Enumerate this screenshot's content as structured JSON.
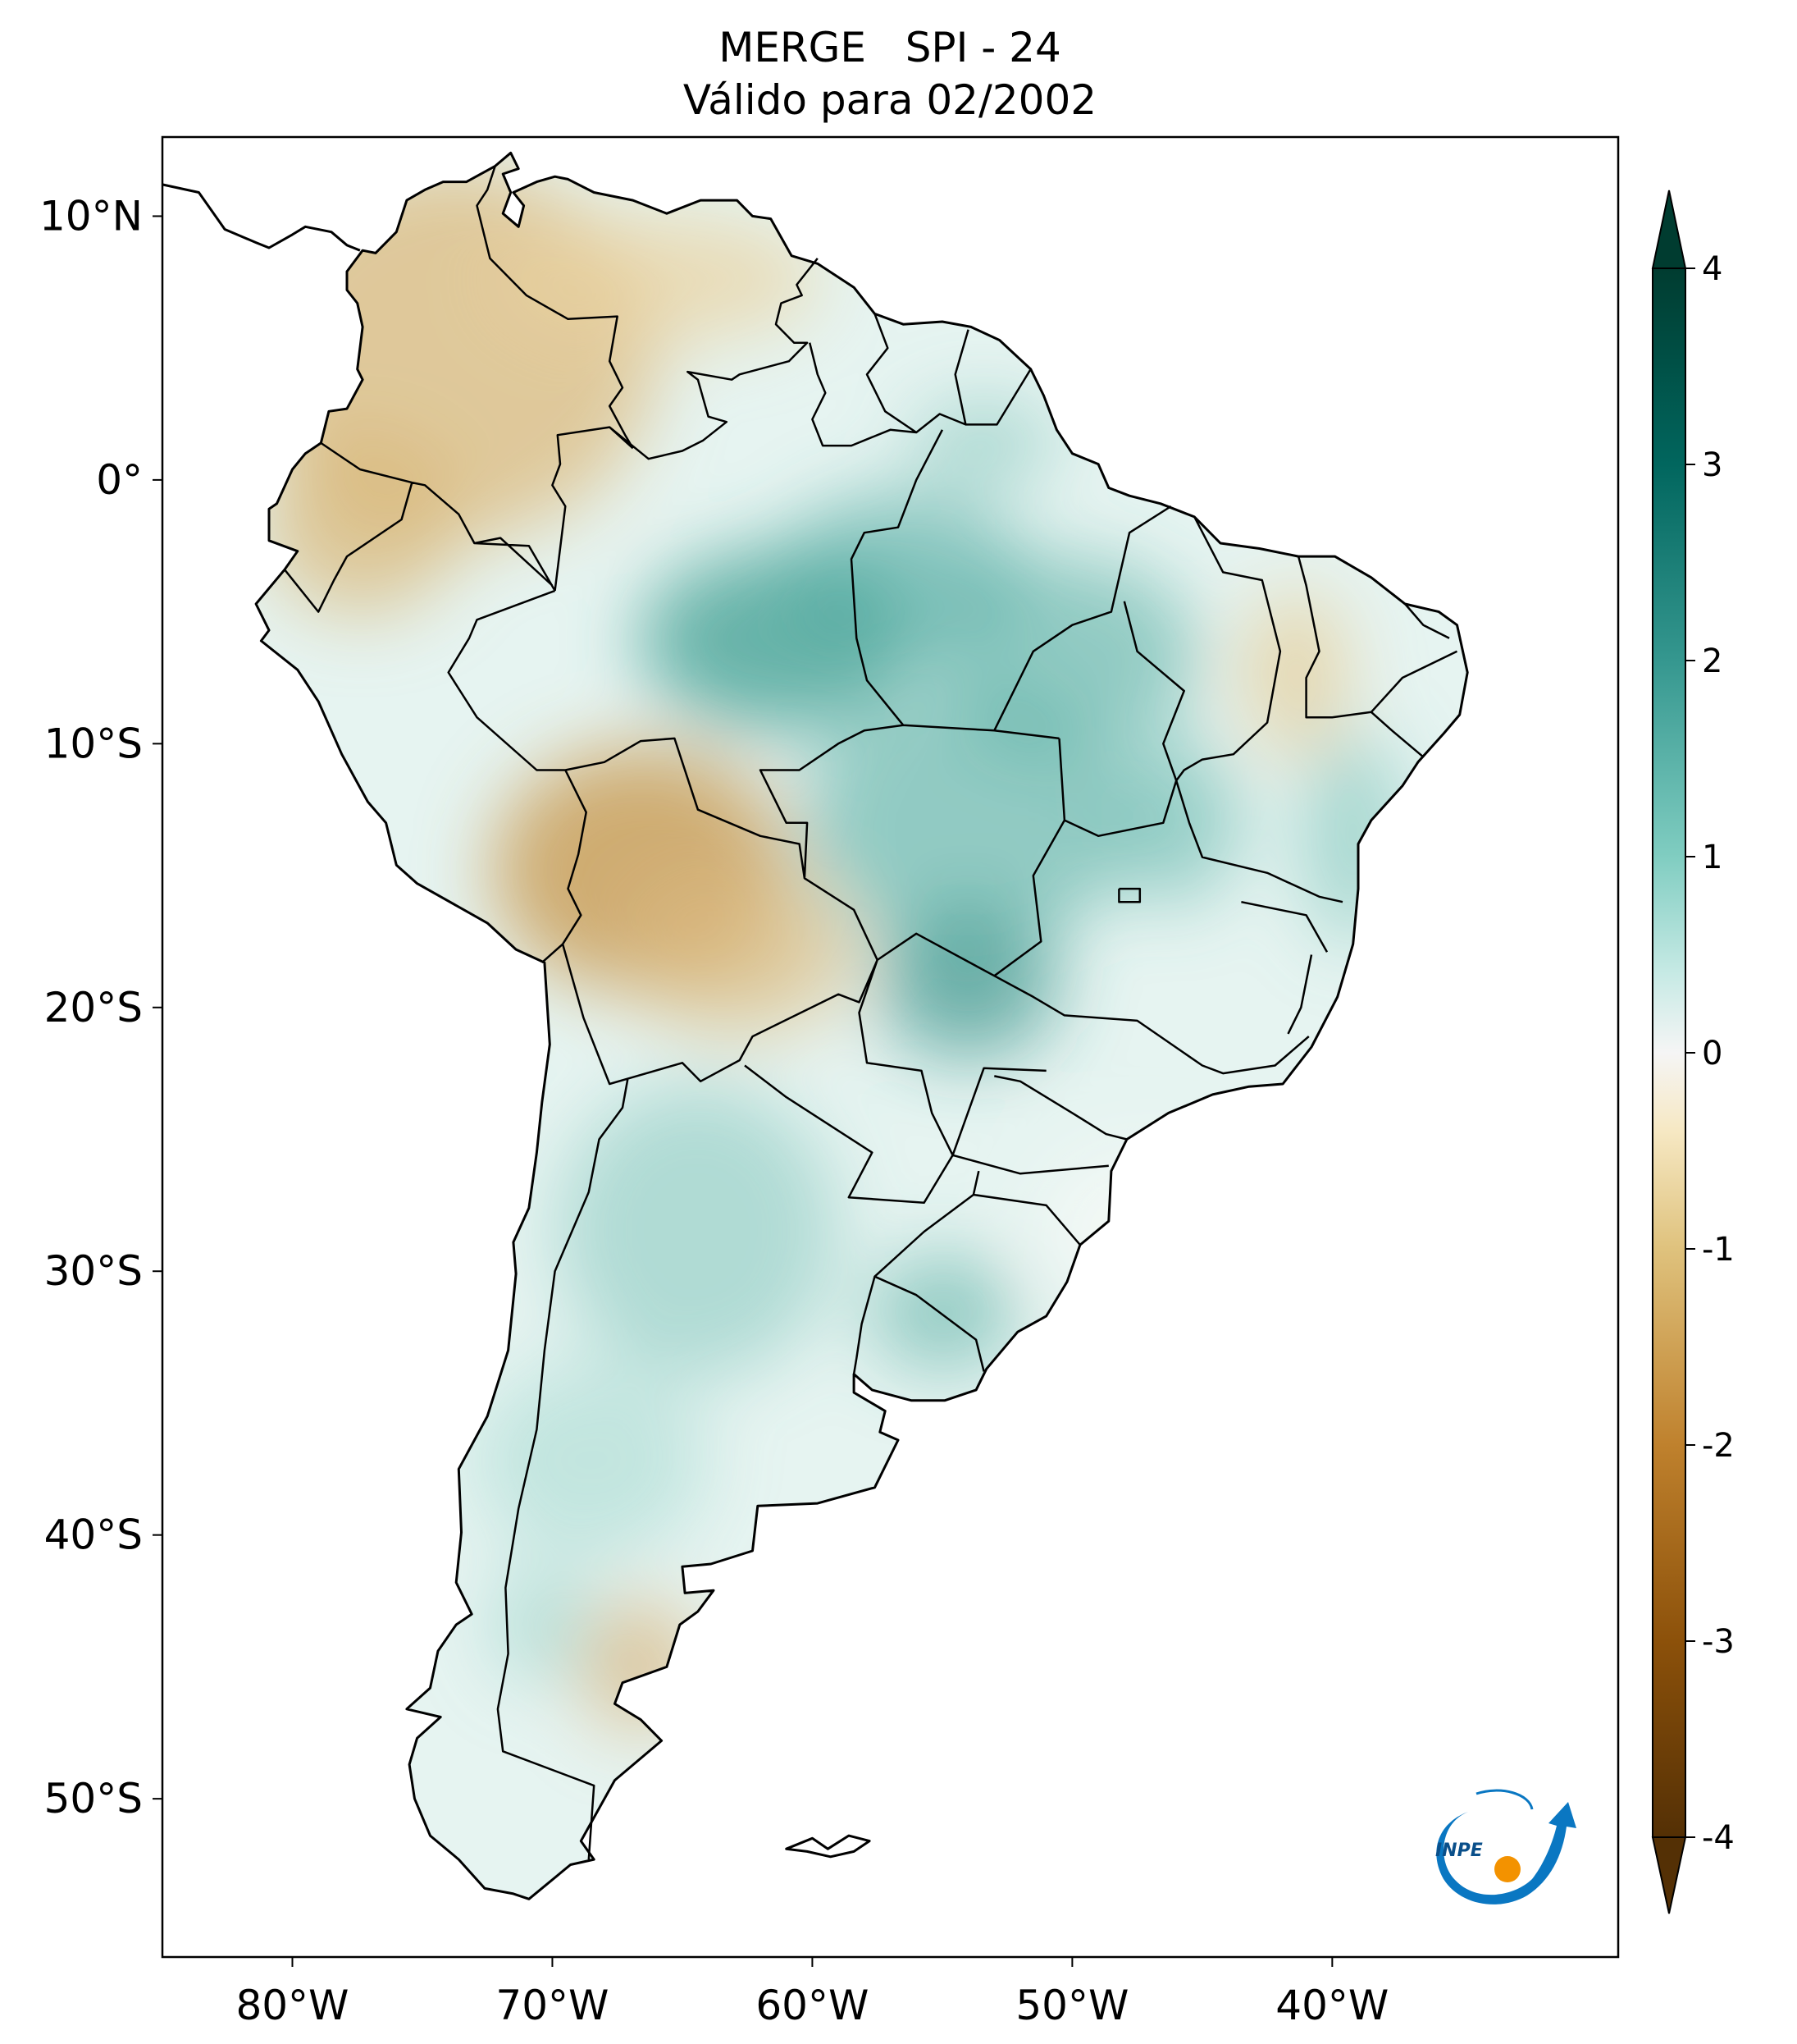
{
  "title": {
    "line1": "MERGE   SPI - 24",
    "line2": "Válido para 02/2002"
  },
  "map": {
    "lon_range": [
      -85,
      -29
    ],
    "lat_range": [
      -56,
      13
    ],
    "lon_ticks": [
      {
        "value": -80,
        "label": "80°W"
      },
      {
        "value": -70,
        "label": "70°W"
      },
      {
        "value": -60,
        "label": "60°W"
      },
      {
        "value": -50,
        "label": "50°W"
      },
      {
        "value": -40,
        "label": "40°W"
      }
    ],
    "lat_ticks": [
      {
        "value": 10,
        "label": "10°N"
      },
      {
        "value": 0,
        "label": "0°"
      },
      {
        "value": -10,
        "label": "10°S"
      },
      {
        "value": -20,
        "label": "20°S"
      },
      {
        "value": -30,
        "label": "30°S"
      },
      {
        "value": -40,
        "label": "40°S"
      },
      {
        "value": -50,
        "label": "50°S"
      }
    ]
  },
  "colorbar": {
    "min": -4,
    "max": 4,
    "extend": "both",
    "ticks": [
      {
        "value": 4,
        "label": "4"
      },
      {
        "value": 3,
        "label": "3"
      },
      {
        "value": 2,
        "label": "2"
      },
      {
        "value": 1,
        "label": "1"
      },
      {
        "value": 0,
        "label": "0"
      },
      {
        "value": -1,
        "label": "-1"
      },
      {
        "value": -2,
        "label": "-2"
      },
      {
        "value": -3,
        "label": "-3"
      },
      {
        "value": -4,
        "label": "-4"
      }
    ],
    "colors": {
      "max": "#003c30",
      "high": "#01665e",
      "mid_high": "#35978f",
      "low_high": "#80cdc1",
      "near_high": "#c7eae5",
      "zero": "#f5f5f5",
      "near_low": "#f6e8c3",
      "low_low": "#dfc27d",
      "mid_low": "#bf812d",
      "low": "#8c510a",
      "min": "#543005"
    }
  },
  "logo": {
    "text": "INPE",
    "accent": "#0a77c2",
    "dot": "#f39200"
  }
}
